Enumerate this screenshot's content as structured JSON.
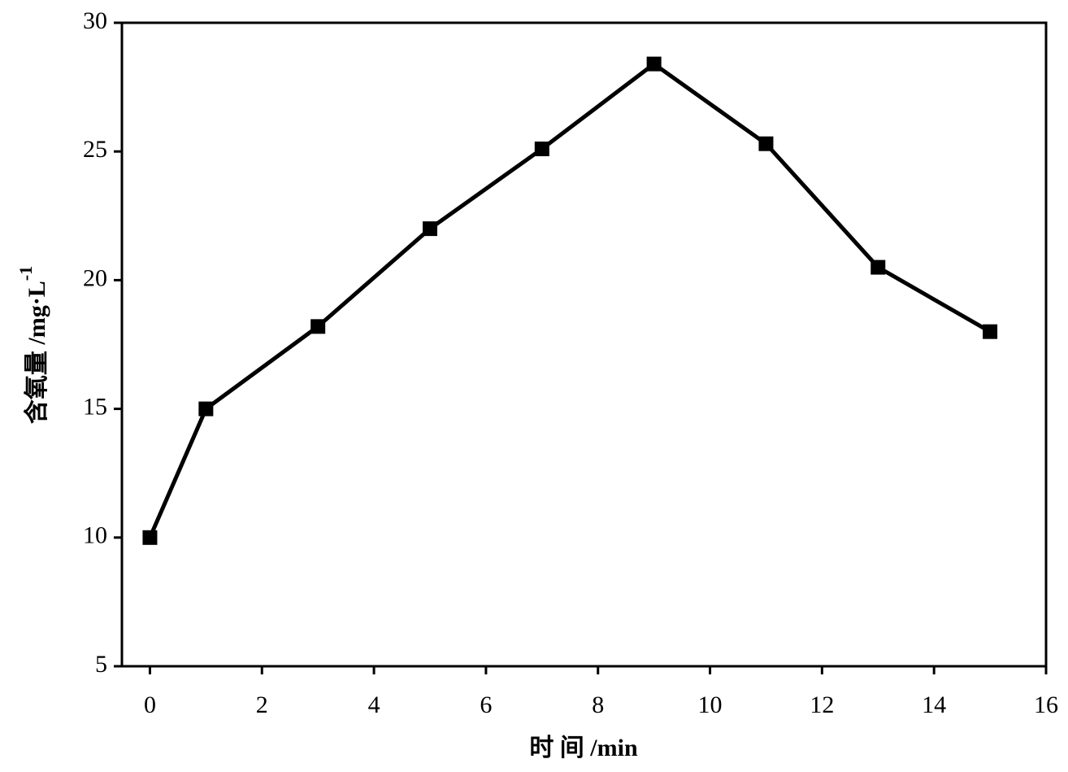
{
  "chart_data": {
    "type": "line",
    "xlabel": "时 间 /min",
    "ylabel": "含氧量 /mg·L",
    "ylabel_superscript": "-1",
    "x": [
      0,
      1,
      3,
      5,
      7,
      9,
      11,
      13,
      15
    ],
    "series": [
      {
        "color": "#000000",
        "values": [
          10,
          15,
          18.2,
          22.0,
          25.1,
          28.4,
          25.3,
          20.5,
          18.0
        ]
      }
    ],
    "xlim": [
      -0.5,
      16
    ],
    "xticks": [
      0,
      2,
      4,
      6,
      8,
      10,
      12,
      14,
      16
    ],
    "ylim": [
      5,
      30
    ],
    "yticks": [
      5,
      10,
      15,
      20,
      25,
      30
    ]
  }
}
